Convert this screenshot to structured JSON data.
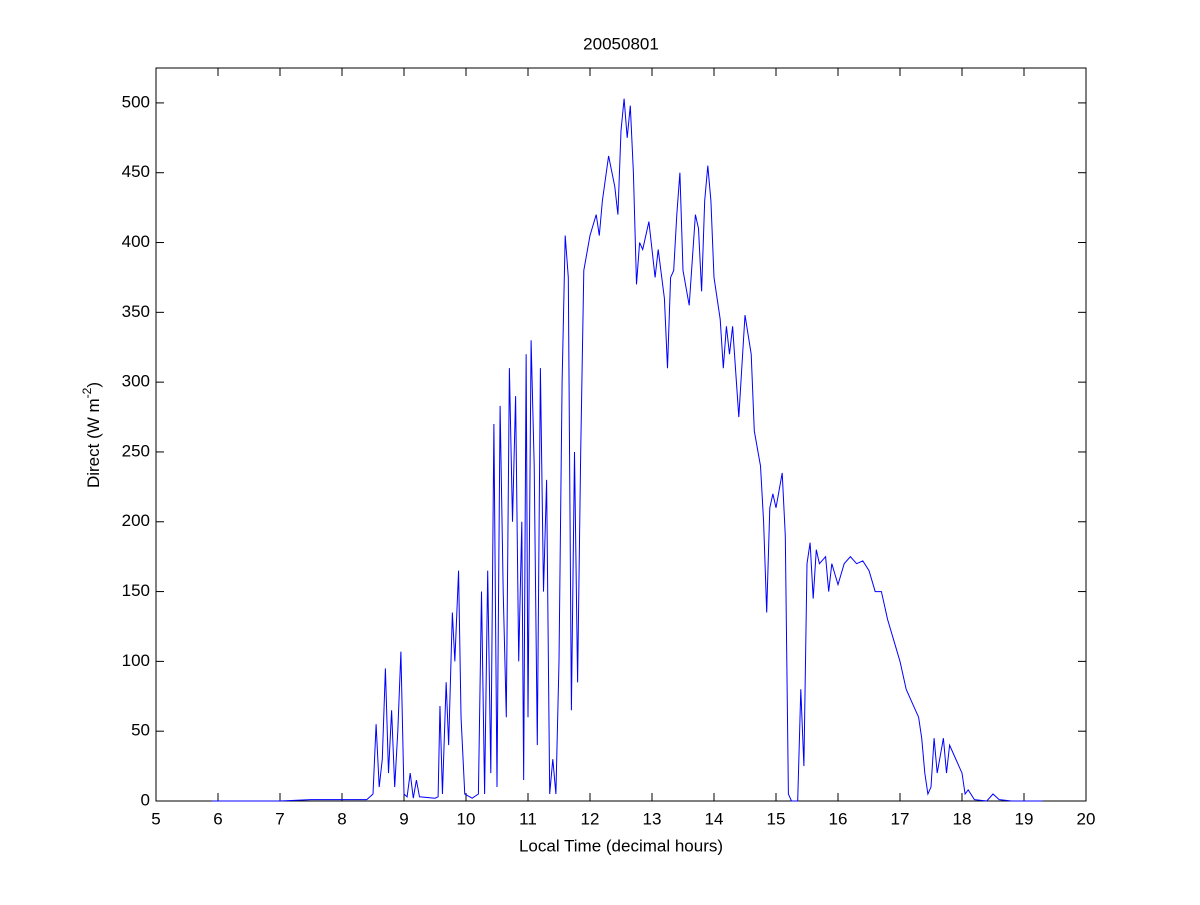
{
  "chart_data": {
    "type": "line",
    "title": "20050801",
    "xlabel": "Local Time (decimal hours)",
    "ylabel": [
      "Direct (W m",
      "-2",
      ")"
    ],
    "xlim": [
      5,
      20
    ],
    "xticks": [
      5,
      6,
      7,
      8,
      9,
      10,
      11,
      12,
      13,
      14,
      15,
      16,
      17,
      18,
      19,
      20
    ],
    "ylim": [
      0,
      525
    ],
    "yticks": [
      0,
      50,
      100,
      150,
      200,
      250,
      300,
      350,
      400,
      450,
      500
    ],
    "grid": false,
    "series": [
      {
        "color": "#0000ff",
        "x": [
          5.9,
          7.0,
          7.5,
          8.0,
          8.4,
          8.5,
          8.55,
          8.6,
          8.65,
          8.7,
          8.75,
          8.8,
          8.85,
          8.9,
          8.95,
          9.0,
          9.05,
          9.1,
          9.15,
          9.2,
          9.25,
          9.5,
          9.55,
          9.58,
          9.62,
          9.68,
          9.72,
          9.78,
          9.82,
          9.88,
          9.92,
          9.98,
          10.1,
          10.2,
          10.25,
          10.3,
          10.35,
          10.4,
          10.45,
          10.5,
          10.55,
          10.6,
          10.65,
          10.7,
          10.75,
          10.8,
          10.85,
          10.9,
          10.93,
          10.97,
          11.0,
          11.05,
          11.1,
          11.15,
          11.2,
          11.25,
          11.3,
          11.35,
          11.4,
          11.45,
          11.5,
          11.55,
          11.6,
          11.65,
          11.7,
          11.75,
          11.8,
          11.85,
          11.9,
          12.0,
          12.1,
          12.15,
          12.2,
          12.3,
          12.4,
          12.45,
          12.5,
          12.55,
          12.6,
          12.65,
          12.7,
          12.75,
          12.8,
          12.85,
          12.95,
          13.05,
          13.1,
          13.2,
          13.25,
          13.3,
          13.35,
          13.4,
          13.45,
          13.5,
          13.6,
          13.7,
          13.75,
          13.8,
          13.85,
          13.9,
          13.95,
          14.0,
          14.1,
          14.15,
          14.2,
          14.25,
          14.3,
          14.4,
          14.5,
          14.6,
          14.65,
          14.75,
          14.8,
          14.85,
          14.9,
          14.95,
          15.0,
          15.1,
          15.15,
          15.2,
          15.25,
          15.35,
          15.4,
          15.45,
          15.5,
          15.55,
          15.6,
          15.65,
          15.7,
          15.8,
          15.85,
          15.9,
          16.0,
          16.1,
          16.2,
          16.3,
          16.4,
          16.5,
          16.6,
          16.7,
          16.8,
          16.9,
          17.0,
          17.1,
          17.2,
          17.3,
          17.35,
          17.4,
          17.45,
          17.5,
          17.55,
          17.6,
          17.7,
          17.75,
          17.8,
          17.9,
          18.0,
          18.05,
          18.1,
          18.2,
          18.4,
          18.5,
          18.6,
          18.8,
          19.3
        ],
        "values": [
          0,
          0,
          1,
          1,
          1,
          5,
          55,
          10,
          30,
          95,
          20,
          65,
          10,
          50,
          107,
          5,
          3,
          20,
          2,
          15,
          3,
          2,
          3,
          68,
          5,
          85,
          40,
          135,
          100,
          165,
          60,
          5,
          2,
          5,
          150,
          5,
          165,
          20,
          270,
          10,
          283,
          150,
          60,
          310,
          200,
          290,
          100,
          200,
          15,
          320,
          60,
          330,
          240,
          40,
          310,
          150,
          230,
          5,
          30,
          5,
          100,
          300,
          405,
          375,
          65,
          250,
          85,
          250,
          380,
          405,
          420,
          405,
          430,
          462,
          440,
          420,
          480,
          503,
          475,
          498,
          450,
          370,
          400,
          395,
          415,
          375,
          395,
          360,
          310,
          375,
          380,
          420,
          450,
          380,
          355,
          420,
          410,
          365,
          430,
          455,
          430,
          375,
          345,
          310,
          340,
          320,
          340,
          275,
          348,
          320,
          265,
          240,
          200,
          135,
          210,
          220,
          210,
          235,
          190,
          5,
          0,
          0,
          80,
          25,
          170,
          185,
          145,
          180,
          170,
          175,
          150,
          170,
          155,
          170,
          175,
          170,
          172,
          165,
          150,
          150,
          130,
          115,
          100,
          80,
          70,
          60,
          45,
          20,
          5,
          10,
          45,
          20,
          45,
          20,
          40,
          30,
          20,
          5,
          8,
          1,
          0,
          5,
          1,
          0,
          0
        ]
      }
    ]
  }
}
